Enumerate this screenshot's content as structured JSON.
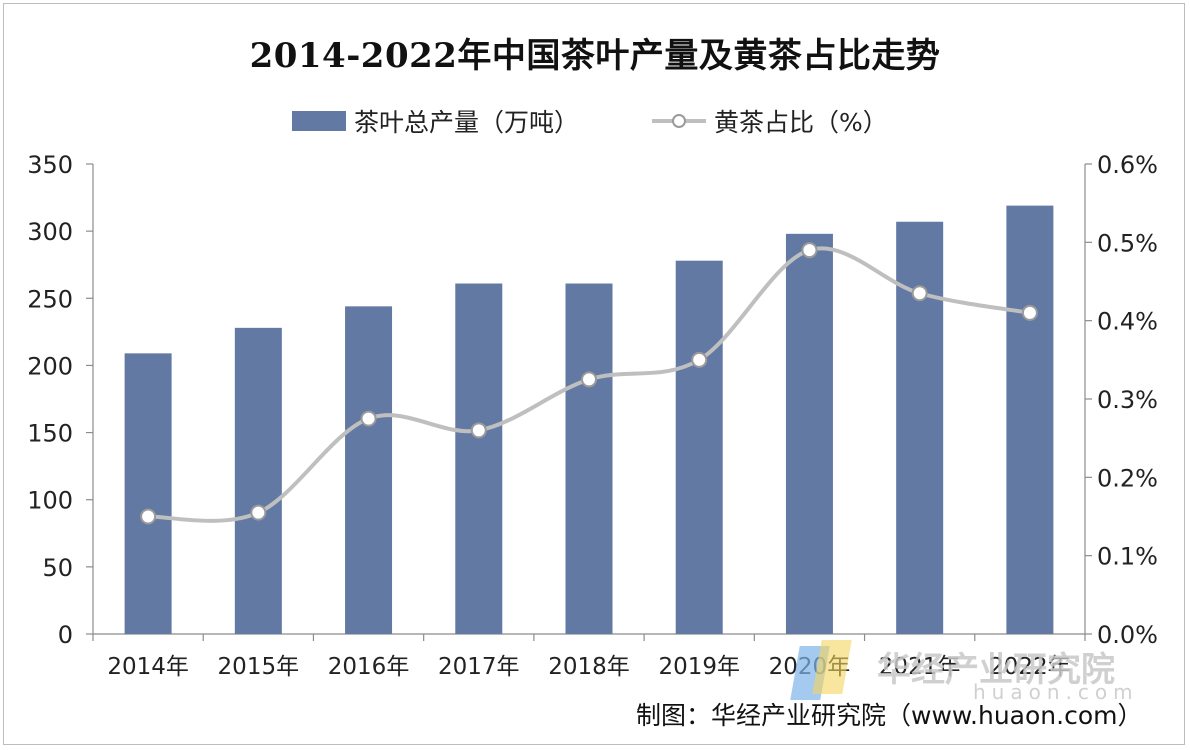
{
  "chart_data": {
    "type": "bar+line",
    "title": "2014-2022年中国茶叶产量及黄茶占比走势",
    "categories": [
      "2014年",
      "2015年",
      "2016年",
      "2017年",
      "2018年",
      "2019年",
      "2020年",
      "2021年",
      "2022年"
    ],
    "series": [
      {
        "name": "茶叶总产量（万吨）",
        "type": "bar",
        "axis": "left",
        "color": "#6279a4",
        "values": [
          209,
          228,
          244,
          261,
          261,
          278,
          298,
          307,
          319
        ]
      },
      {
        "name": "黄茶占比（%）",
        "type": "line",
        "axis": "right",
        "color": "#bfbfbf",
        "values": [
          0.15,
          0.155,
          0.275,
          0.26,
          0.325,
          0.35,
          0.49,
          0.435,
          0.41
        ]
      }
    ],
    "left_axis": {
      "min": 0,
      "max": 350,
      "ticks": [
        "0",
        "50",
        "100",
        "150",
        "200",
        "250",
        "300",
        "350"
      ]
    },
    "right_axis": {
      "min": 0,
      "max": 0.6,
      "ticks": [
        "0.0%",
        "0.1%",
        "0.2%",
        "0.3%",
        "0.4%",
        "0.5%",
        "0.6%"
      ]
    },
    "legend_position": "top",
    "grid": false
  },
  "source": "制图：华经产业研究院（www.huaon.com）",
  "watermark": {
    "text": "华经产业研究院",
    "url": "huaon.com"
  }
}
